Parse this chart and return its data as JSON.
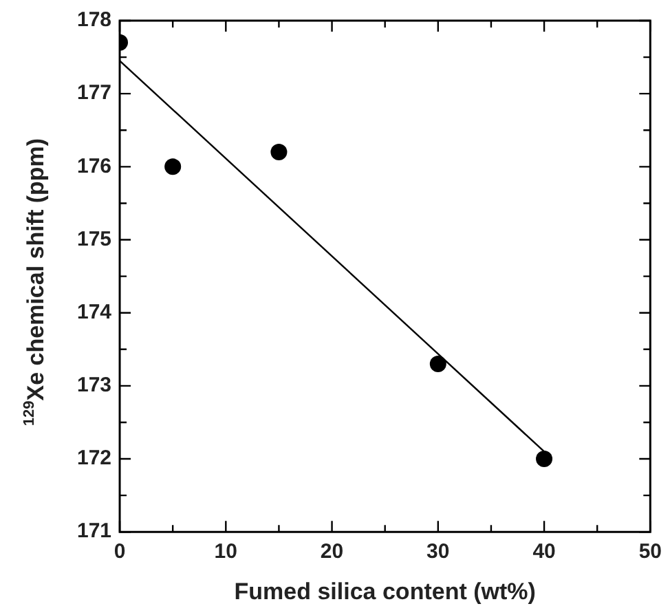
{
  "chart_data": {
    "type": "scatter",
    "xlabel": "Fumed silica content (wt%)",
    "ylabel": "$^{129}$Xe chemical shift (ppm)",
    "grid": false,
    "xlim": [
      0,
      50
    ],
    "xticks": [
      0,
      {
        "value": 5,
        "label": null
      },
      10,
      {
        "value": 15,
        "label": null
      },
      20,
      {
        "value": 25,
        "label": null
      },
      30,
      {
        "value": 35,
        "label": null
      },
      40,
      {
        "value": 45,
        "label": null
      },
      50
    ],
    "ylim": [
      171,
      178
    ],
    "yticks": [
      171,
      {
        "value": 171.5,
        "label": null
      },
      172,
      {
        "value": 172.5,
        "label": null
      },
      173,
      {
        "value": 173.5,
        "label": null
      },
      174,
      {
        "value": 174.5,
        "label": null
      },
      175,
      {
        "value": 175.5,
        "label": null
      },
      176,
      {
        "value": 176.5,
        "label": null
      },
      177,
      {
        "value": 177.5,
        "label": null
      },
      178
    ],
    "series": [
      {
        "color": "#000000",
        "marker": "circle",
        "x": [
          0,
          5,
          15,
          30,
          40
        ],
        "values": [
          177.7,
          176.0,
          176.2,
          173.3,
          172.0
        ]
      },
      {
        "type": "line",
        "marker": "none",
        "color": "#000000",
        "x": [
          0,
          40
        ],
        "values": [
          177.45,
          172.1
        ]
      }
    ]
  }
}
